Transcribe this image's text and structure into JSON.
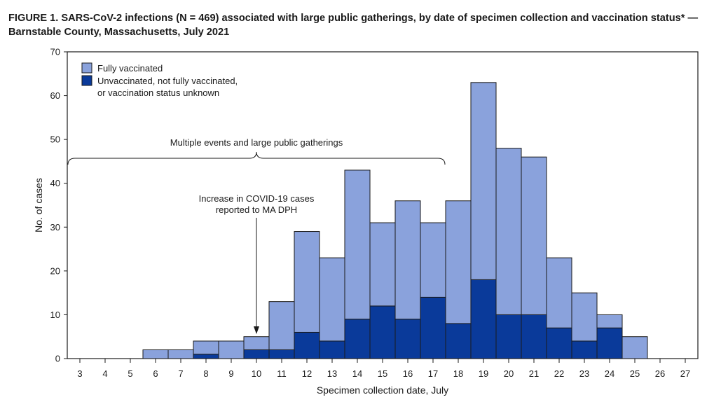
{
  "figure": {
    "title_line1": "FIGURE 1. SARS-CoV-2 infections (N = 469) associated with large public gatherings, by date of specimen collection and vaccination status* —",
    "title_line2": "Barnstable County, Massachusetts, July 2021"
  },
  "chart_data": {
    "type": "bar",
    "stacked": true,
    "categories": [
      3,
      4,
      5,
      6,
      7,
      8,
      9,
      10,
      11,
      12,
      13,
      14,
      15,
      16,
      17,
      18,
      19,
      20,
      21,
      22,
      23,
      24,
      25,
      26,
      27
    ],
    "series": [
      {
        "name": "Unvaccinated, not fully vaccinated, or vaccination status unknown",
        "legend_lines": [
          "Unvaccinated, not fully vaccinated,",
          "or vaccination status unknown"
        ],
        "color": "#0a3a9a",
        "values": [
          0,
          0,
          0,
          0,
          0,
          1,
          0,
          2,
          2,
          6,
          4,
          9,
          12,
          9,
          14,
          8,
          18,
          10,
          10,
          7,
          4,
          7,
          0,
          0,
          0
        ]
      },
      {
        "name": "Fully vaccinated",
        "legend_lines": [
          "Fully vaccinated"
        ],
        "color": "#8aa2dc",
        "values": [
          0,
          0,
          0,
          2,
          2,
          3,
          4,
          3,
          11,
          23,
          19,
          34,
          19,
          27,
          17,
          28,
          45,
          38,
          36,
          16,
          11,
          3,
          5,
          0,
          0
        ]
      }
    ],
    "xlabel": "Specimen collection date, July",
    "ylabel": "No. of cases",
    "ylim": [
      0,
      70
    ],
    "yticks": [
      0,
      10,
      20,
      30,
      40,
      50,
      60,
      70
    ],
    "legend_position": "top-left",
    "annotations": {
      "brace_label": "Multiple events and large public gatherings",
      "brace_from": 3,
      "brace_to": 17,
      "arrow_label_lines": [
        "Increase in COVID-19 cases",
        "reported to MA DPH"
      ],
      "arrow_at": 10
    }
  }
}
